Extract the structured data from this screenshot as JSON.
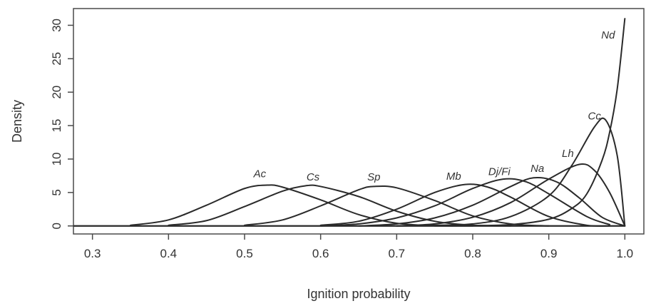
{
  "chart_data": {
    "type": "line",
    "title": "",
    "xlabel": "Ignition probability",
    "ylabel": "Density",
    "xlim": [
      0.275,
      1.025
    ],
    "ylim": [
      -1.2,
      32.5
    ],
    "xticks": [
      0.3,
      0.4,
      0.5,
      0.6,
      0.7,
      0.8,
      0.9,
      1.0
    ],
    "xtick_labels": [
      "0.3",
      "0.4",
      "0.5",
      "0.6",
      "0.7",
      "0.8",
      "0.9",
      "1.0"
    ],
    "yticks": [
      0,
      5,
      10,
      15,
      20,
      25,
      30
    ],
    "ytick_labels": [
      "0",
      "5",
      "10",
      "15",
      "20",
      "25",
      "30"
    ],
    "grid": false,
    "legend": "none",
    "line_color": "#2a2a2a",
    "series": [
      {
        "name": "Ac",
        "label_at": [
          0.52,
          7.3
        ],
        "x": [
          0.35,
          0.4,
          0.45,
          0.5,
          0.53,
          0.55,
          0.6,
          0.65,
          0.7,
          0.75,
          0.8
        ],
        "y": [
          0.1,
          0.9,
          3.1,
          5.6,
          6.1,
          5.8,
          3.9,
          1.7,
          0.4,
          0.05,
          0.0
        ]
      },
      {
        "name": "Cs",
        "label_at": [
          0.59,
          6.8
        ],
        "x": [
          0.4,
          0.45,
          0.5,
          0.55,
          0.58,
          0.6,
          0.65,
          0.7,
          0.75,
          0.8,
          0.85
        ],
        "y": [
          0.1,
          0.8,
          2.9,
          5.2,
          6.0,
          5.9,
          4.4,
          2.2,
          0.7,
          0.1,
          0.0
        ]
      },
      {
        "name": "Sp",
        "label_at": [
          0.67,
          6.8
        ],
        "x": [
          0.5,
          0.55,
          0.6,
          0.65,
          0.67,
          0.7,
          0.75,
          0.8,
          0.85,
          0.9
        ],
        "y": [
          0.1,
          0.9,
          3.0,
          5.4,
          5.9,
          5.7,
          3.8,
          1.5,
          0.3,
          0.0
        ]
      },
      {
        "name": "Mb",
        "label_at": [
          0.775,
          6.9
        ],
        "x": [
          0.6,
          0.65,
          0.7,
          0.75,
          0.79,
          0.82,
          0.85,
          0.9,
          0.95,
          0.98
        ],
        "y": [
          0.1,
          0.7,
          2.5,
          5.0,
          6.2,
          5.8,
          4.3,
          1.4,
          0.1,
          0.0
        ]
      },
      {
        "name": "Dj/Fi",
        "label_at": [
          0.835,
          7.6
        ],
        "x": [
          0.6,
          0.65,
          0.7,
          0.75,
          0.8,
          0.84,
          0.87,
          0.9,
          0.95,
          0.98
        ],
        "y": [
          0.0,
          0.3,
          1.2,
          3.0,
          5.6,
          7.0,
          6.6,
          4.8,
          1.4,
          0.2
        ]
      },
      {
        "name": "Na",
        "label_at": [
          0.885,
          8.1
        ],
        "x": [
          0.65,
          0.7,
          0.75,
          0.8,
          0.85,
          0.88,
          0.91,
          0.94,
          0.97,
          1.0
        ],
        "y": [
          0.0,
          0.3,
          1.2,
          3.1,
          5.9,
          7.2,
          6.6,
          4.2,
          1.3,
          0.0
        ]
      },
      {
        "name": "Lh",
        "label_at": [
          0.925,
          10.3
        ],
        "x": [
          0.7,
          0.75,
          0.8,
          0.85,
          0.9,
          0.94,
          0.96,
          0.98,
          1.0
        ],
        "y": [
          0.0,
          0.3,
          1.3,
          3.5,
          7.0,
          9.2,
          8.3,
          5.0,
          0.0
        ]
      },
      {
        "name": "Cc",
        "label_at": [
          0.96,
          15.9
        ],
        "x": [
          0.7,
          0.75,
          0.8,
          0.85,
          0.9,
          0.93,
          0.96,
          0.975,
          0.99,
          1.0
        ],
        "y": [
          0.0,
          0.1,
          0.3,
          1.4,
          4.5,
          9.0,
          14.8,
          15.8,
          10.5,
          0.0
        ]
      },
      {
        "name": "Nd",
        "label_at": [
          0.978,
          28.0
        ],
        "x": [
          0.75,
          0.8,
          0.85,
          0.9,
          0.93,
          0.95,
          0.97,
          0.98,
          0.99,
          1.0
        ],
        "y": [
          0.0,
          0.05,
          0.2,
          1.0,
          2.6,
          4.8,
          9.8,
          14.0,
          20.5,
          31.0
        ]
      }
    ]
  }
}
